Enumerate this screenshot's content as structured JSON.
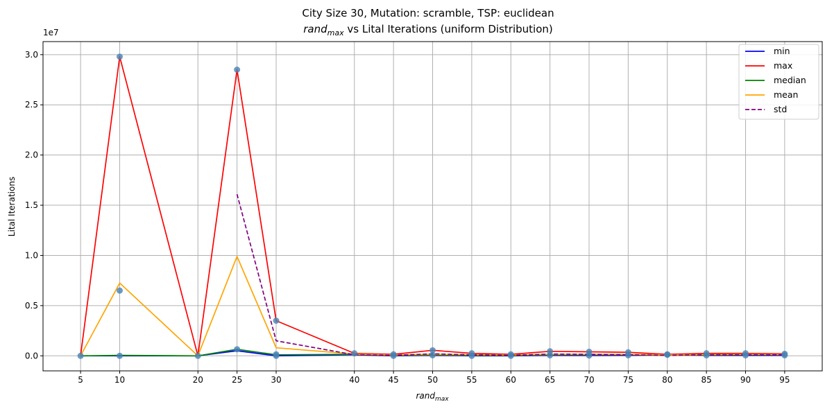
{
  "chart_data": {
    "type": "line",
    "title": "City Size 30, Mutation: scramble, TSP: euclidean",
    "subtitle_prefix": "rand",
    "subtitle_sub": "max",
    "subtitle_rest": " vs Lital Iterations (uniform Distribution)",
    "xlabel_main": "rand",
    "xlabel_sub": "max",
    "ylabel": "Lital Iterations",
    "y_scale_label": "1e7",
    "x": [
      5,
      10,
      20,
      25,
      30,
      40,
      45,
      50,
      55,
      60,
      65,
      70,
      75,
      80,
      85,
      90,
      95
    ],
    "x_ticks": [
      "5",
      "10",
      "20",
      "25",
      "30",
      "40",
      "45",
      "50",
      "55",
      "60",
      "65",
      "70",
      "75",
      "80",
      "85",
      "90",
      "95"
    ],
    "y_ticks": [
      "0.0",
      "0.5",
      "1.0",
      "1.5",
      "2.0",
      "2.5",
      "3.0"
    ],
    "xlim": [
      0.2,
      99.8
    ],
    "ylim": [
      -1500000,
      31300000
    ],
    "grid": true,
    "legend_position": "top-right",
    "series": [
      {
        "name": "min",
        "color": "#0000ff",
        "dash": false,
        "values": [
          0,
          0,
          0,
          500000,
          0,
          100000,
          0,
          50000,
          0,
          0,
          50000,
          30000,
          50000,
          100000,
          50000,
          50000,
          50000
        ]
      },
      {
        "name": "max",
        "color": "#ff0000",
        "dash": false,
        "values": [
          0,
          29800000,
          0,
          28500000,
          3500000,
          250000,
          150000,
          550000,
          250000,
          150000,
          450000,
          400000,
          350000,
          150000,
          250000,
          250000,
          200000
        ]
      },
      {
        "name": "median",
        "color": "#008000",
        "dash": false,
        "values": [
          0,
          50000,
          0,
          650000,
          100000,
          150000,
          50000,
          80000,
          50000,
          30000,
          100000,
          100000,
          100000,
          100000,
          80000,
          100000,
          100000
        ]
      },
      {
        "name": "mean",
        "color": "#ffa500",
        "dash": false,
        "values": [
          0,
          7250000,
          0,
          9900000,
          800000,
          180000,
          80000,
          150000,
          100000,
          80000,
          150000,
          150000,
          150000,
          100000,
          120000,
          150000,
          120000
        ]
      },
      {
        "name": "std",
        "color": "#800080",
        "dash": true,
        "values": [
          null,
          null,
          null,
          16100000,
          1500000,
          100000,
          50000,
          200000,
          100000,
          50000,
          180000,
          150000,
          100000,
          50000,
          100000,
          100000,
          100000
        ]
      }
    ],
    "scatter": {
      "color": "#4682b4",
      "points": [
        [
          5,
          0
        ],
        [
          10,
          29800000
        ],
        [
          10,
          6500000
        ],
        [
          10,
          0
        ],
        [
          20,
          0
        ],
        [
          25,
          28500000
        ],
        [
          25,
          650000
        ],
        [
          30,
          3500000
        ],
        [
          30,
          150000
        ],
        [
          30,
          0
        ],
        [
          40,
          250000
        ],
        [
          45,
          150000
        ],
        [
          45,
          0
        ],
        [
          50,
          550000
        ],
        [
          50,
          50000
        ],
        [
          55,
          250000
        ],
        [
          55,
          0
        ],
        [
          60,
          150000
        ],
        [
          60,
          0
        ],
        [
          65,
          450000
        ],
        [
          65,
          50000
        ],
        [
          70,
          400000
        ],
        [
          70,
          30000
        ],
        [
          75,
          350000
        ],
        [
          75,
          50000
        ],
        [
          80,
          150000
        ],
        [
          80,
          100000
        ],
        [
          85,
          250000
        ],
        [
          85,
          50000
        ],
        [
          90,
          250000
        ],
        [
          90,
          50000
        ],
        [
          95,
          200000
        ],
        [
          95,
          50000
        ]
      ]
    }
  }
}
